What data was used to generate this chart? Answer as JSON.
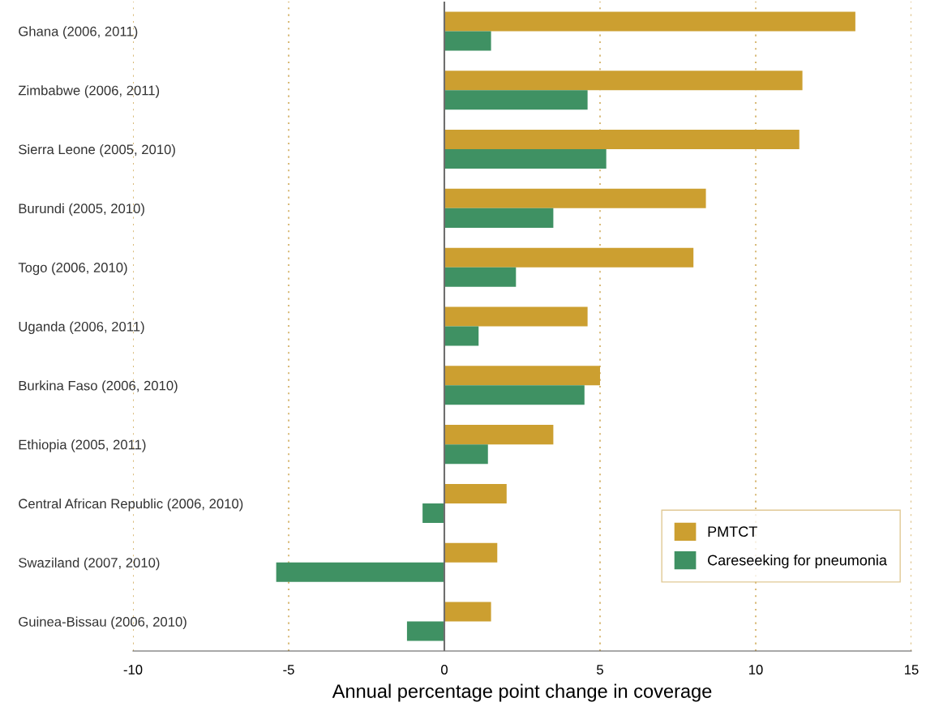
{
  "chart_data": {
    "type": "bar",
    "orientation": "horizontal",
    "xlabel": "Annual percentage point change in coverage",
    "categories": [
      "Ghana (2006, 2011)",
      "Zimbabwe (2006, 2011)",
      "Sierra Leone (2005, 2010)",
      "Burundi (2005, 2010)",
      "Togo (2006, 2010)",
      "Uganda (2006, 2011)",
      "Burkina Faso (2006, 2010)",
      "Ethiopia (2005, 2011)",
      "Central African Republic (2006, 2010)",
      "Swaziland (2007, 2010)",
      "Guinea-Bissau (2006, 2010)"
    ],
    "series": [
      {
        "name": "PMTCT",
        "color": "#cc9f30",
        "values": [
          13.2,
          11.5,
          11.4,
          8.4,
          8.0,
          4.6,
          5.0,
          3.5,
          2.0,
          1.7,
          1.5
        ]
      },
      {
        "name": "Careseeking for pneumonia",
        "color": "#3f9163",
        "values": [
          1.5,
          4.6,
          5.2,
          3.5,
          2.3,
          1.1,
          4.5,
          1.4,
          -0.7,
          -5.4,
          -1.2
        ]
      }
    ],
    "xlim": [
      -10,
      15
    ],
    "xticks": [
      -10,
      -5,
      0,
      5,
      10,
      15
    ],
    "grid": "x",
    "legend": "lower right",
    "ref_lines": [
      {
        "axis": "x",
        "value": 0,
        "color": "#6e6e6e",
        "line_style": "solid"
      }
    ]
  }
}
